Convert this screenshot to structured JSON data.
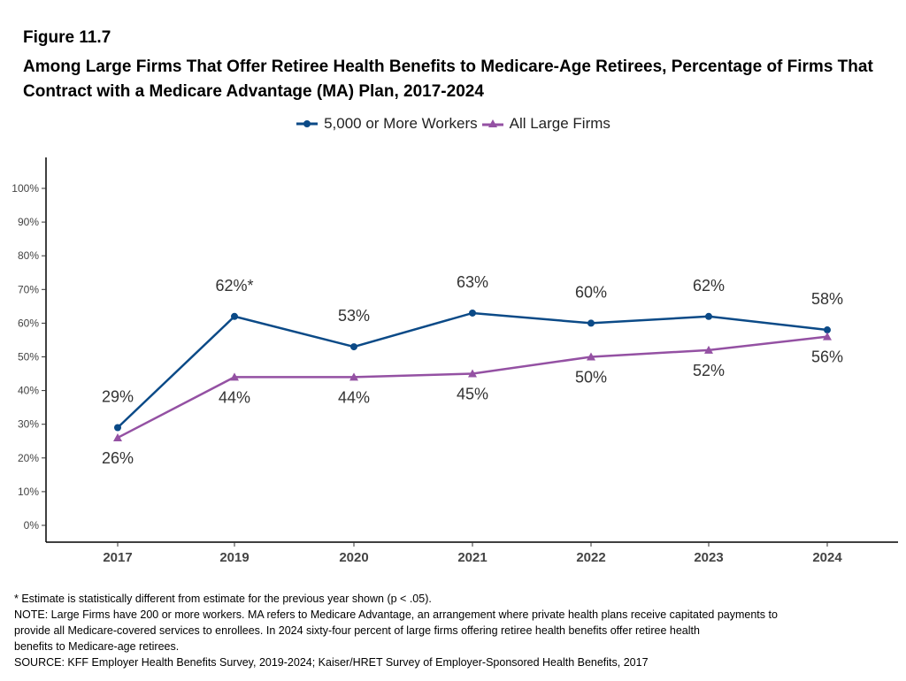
{
  "figure_label": "Figure 11.7",
  "chart_data": {
    "type": "line",
    "title": "Among Large Firms That Offer Retiree Health Benefits to Medicare-Age Retirees, Percentage of Firms That Contract with a Medicare Advantage (MA) Plan, 2017-2024",
    "categories": [
      "2017",
      "2019",
      "2020",
      "2021",
      "2022",
      "2023",
      "2024"
    ],
    "ylim": [
      0,
      100
    ],
    "yticks": [
      "0%",
      "10%",
      "20%",
      "30%",
      "40%",
      "50%",
      "60%",
      "70%",
      "80%",
      "90%",
      "100%"
    ],
    "grid": false,
    "legend_position": "top",
    "series": [
      {
        "name": "5,000 or More Workers",
        "color": "#0b4a87",
        "marker": "circle",
        "values": [
          29,
          62,
          53,
          63,
          60,
          62,
          58
        ],
        "labels": [
          "29%",
          "62%*",
          "53%",
          "63%",
          "60%",
          "62%",
          "58%"
        ]
      },
      {
        "name": "All Large Firms",
        "color": "#9451a3",
        "marker": "triangle",
        "values": [
          26,
          44,
          44,
          45,
          50,
          52,
          56
        ],
        "labels": [
          "26%",
          "44%",
          "44%",
          "45%",
          "50%",
          "52%",
          "56%"
        ]
      }
    ]
  },
  "footnotes": [
    "* Estimate is statistically different from estimate for the previous year shown (p < .05).",
    "NOTE: Large Firms have 200 or more workers.  MA refers to Medicare Advantage, an arrangement where private health plans receive capitated payments to",
    "provide all Medicare-covered services to enrollees.  In 2024 sixty-four percent of large firms offering retiree health benefits offer retiree health",
    "benefits to Medicare-age retirees.",
    "SOURCE: KFF Employer Health Benefits Survey, 2019-2024; Kaiser/HRET Survey of Employer-Sponsored Health Benefits, 2017"
  ]
}
